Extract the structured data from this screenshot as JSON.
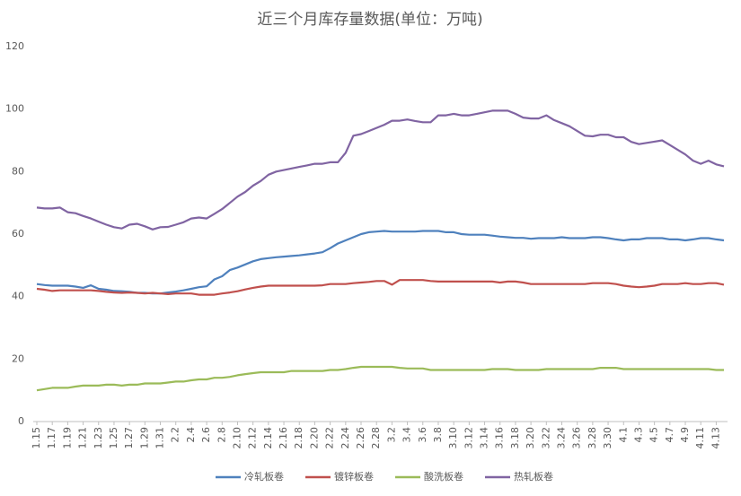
{
  "chart_data": {
    "type": "line",
    "title": "近三个月库存量数据(单位：万吨)",
    "categories": [
      "1.15",
      null,
      "1.17",
      null,
      "1.19",
      null,
      "1.21",
      null,
      "1.23",
      null,
      "1.25",
      null,
      "1.27",
      null,
      "1.29",
      null,
      "1.31",
      null,
      "2.2",
      null,
      "2.4",
      null,
      "2.6",
      null,
      "2.8",
      null,
      "2.10",
      null,
      "2.12",
      null,
      "2.14",
      null,
      "2.16",
      null,
      "2.18",
      null,
      "2.20",
      null,
      "2.22",
      null,
      "2.24",
      null,
      "2.26",
      null,
      "2.28",
      null,
      "3.2",
      null,
      "3.4",
      null,
      "3.6",
      null,
      "3.8",
      null,
      "3.10",
      null,
      "3.12",
      null,
      "3.14",
      null,
      "3.16",
      null,
      "3.18",
      null,
      "3.20",
      null,
      "3.22",
      null,
      "3.24",
      null,
      "3.26",
      null,
      "3.28",
      null,
      "3.30",
      null,
      "4.1",
      null,
      "4.3",
      null,
      "4.5",
      null,
      "4.7",
      null,
      "4.9",
      null,
      "4.11",
      null,
      "4.13",
      null
    ],
    "series": [
      {
        "name": "冷轧板卷",
        "color": "#4f81bd",
        "values": [
          44,
          43.7,
          43.5,
          43.5,
          43.5,
          43.2,
          42.8,
          43.6,
          42.5,
          42.2,
          41.8,
          41.7,
          41.5,
          41.2,
          41.2,
          41,
          41,
          41.3,
          41.6,
          42,
          42.5,
          43,
          43.3,
          45.5,
          46.5,
          48.5,
          49.3,
          50.3,
          51.3,
          52,
          52.3,
          52.6,
          52.8,
          53,
          53.2,
          53.5,
          53.8,
          54.2,
          55.5,
          57,
          58,
          59,
          60,
          60.6,
          60.8,
          61,
          60.8,
          60.8,
          60.8,
          60.8,
          61,
          61,
          61,
          60.6,
          60.6,
          60,
          59.8,
          59.8,
          59.8,
          59.5,
          59.2,
          59,
          58.8,
          58.8,
          58.5,
          58.7,
          58.7,
          58.7,
          59,
          58.7,
          58.7,
          58.7,
          59,
          59,
          58.7,
          58.3,
          58,
          58.3,
          58.3,
          58.7,
          58.7,
          58.7,
          58.3,
          58.3,
          58,
          58.3,
          58.7,
          58.7,
          58.3,
          58
        ]
      },
      {
        "name": "镀锌板卷",
        "color": "#c0504d",
        "values": [
          42.5,
          42.2,
          41.8,
          42,
          42,
          42,
          42,
          42,
          41.8,
          41.5,
          41.3,
          41.2,
          41.3,
          41.2,
          41,
          41.2,
          41,
          40.8,
          41,
          41,
          41,
          40.6,
          40.6,
          40.6,
          41,
          41.3,
          41.7,
          42.3,
          42.8,
          43.2,
          43.5,
          43.5,
          43.5,
          43.5,
          43.5,
          43.5,
          43.5,
          43.6,
          44,
          44,
          44,
          44.3,
          44.5,
          44.7,
          45,
          45,
          43.8,
          45.3,
          45.3,
          45.3,
          45.3,
          45,
          44.8,
          44.8,
          44.8,
          44.8,
          44.8,
          44.8,
          44.8,
          44.8,
          44.5,
          44.8,
          44.8,
          44.5,
          44,
          44,
          44,
          44,
          44,
          44,
          44,
          44,
          44.3,
          44.3,
          44.3,
          44,
          43.5,
          43.2,
          43,
          43.2,
          43.5,
          44,
          44,
          44,
          44.3,
          44,
          44,
          44.3,
          44.3,
          43.8
        ]
      },
      {
        "name": "酸洗板卷",
        "color": "#9bbb59",
        "values": [
          10,
          10.4,
          10.8,
          10.8,
          10.8,
          11.2,
          11.5,
          11.5,
          11.5,
          11.8,
          11.8,
          11.5,
          11.8,
          11.8,
          12.2,
          12.2,
          12.2,
          12.5,
          12.8,
          12.8,
          13.2,
          13.5,
          13.5,
          14,
          14,
          14.3,
          14.8,
          15.2,
          15.5,
          15.8,
          15.8,
          15.8,
          15.8,
          16.2,
          16.2,
          16.2,
          16.2,
          16.2,
          16.5,
          16.5,
          16.8,
          17.2,
          17.5,
          17.5,
          17.5,
          17.5,
          17.5,
          17.2,
          17,
          17,
          17,
          16.5,
          16.5,
          16.5,
          16.5,
          16.5,
          16.5,
          16.5,
          16.5,
          16.8,
          16.8,
          16.8,
          16.5,
          16.5,
          16.5,
          16.5,
          16.8,
          16.8,
          16.8,
          16.8,
          16.8,
          16.8,
          16.8,
          17.2,
          17.2,
          17.2,
          16.8,
          16.8,
          16.8,
          16.8,
          16.8,
          16.8,
          16.8,
          16.8,
          16.8,
          16.8,
          16.8,
          16.8,
          16.5,
          16.5
        ]
      },
      {
        "name": "热轧板卷",
        "color": "#8064a2",
        "values": [
          68.5,
          68.2,
          68.2,
          68.5,
          67,
          66.7,
          65.8,
          65,
          64,
          63,
          62.2,
          61.8,
          63,
          63.3,
          62.5,
          61.5,
          62.2,
          62.3,
          63,
          63.8,
          65,
          65.3,
          65,
          66.5,
          68,
          70,
          72,
          73.5,
          75.5,
          77,
          79,
          80,
          80.5,
          81,
          81.5,
          82,
          82.5,
          82.5,
          83,
          83,
          86,
          91.5,
          92,
          93,
          94,
          95,
          96.3,
          96.3,
          96.7,
          96.2,
          95.8,
          95.8,
          98,
          98,
          98.5,
          98,
          98,
          98.5,
          99,
          99.5,
          99.5,
          99.5,
          98.5,
          97.3,
          97,
          97,
          98,
          96.5,
          95.5,
          94.5,
          93,
          91.5,
          91.3,
          91.8,
          91.8,
          91,
          91,
          89.5,
          88.8,
          89.2,
          89.6,
          90,
          88.5,
          87,
          85.5,
          83.5,
          82.5,
          83.5,
          82.3,
          81.7
        ]
      }
    ],
    "ylim": [
      0,
      120
    ],
    "yticks": [
      0,
      20,
      40,
      60,
      80,
      100,
      120
    ],
    "grid": false,
    "legend": "bottom"
  }
}
